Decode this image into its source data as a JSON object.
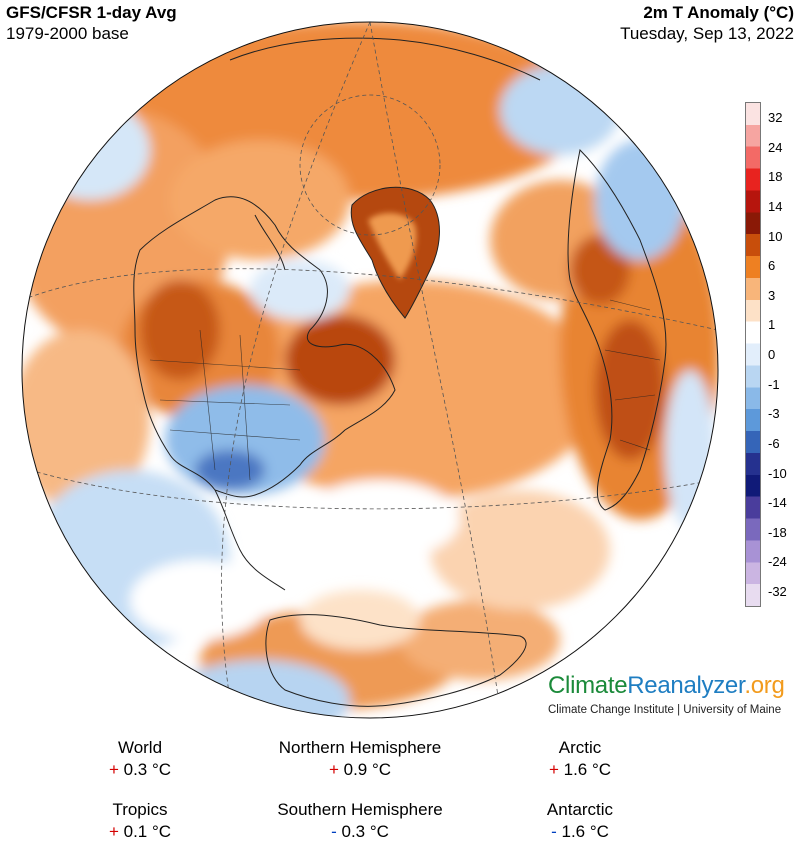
{
  "header": {
    "title": "GFS/CFSR 1-day Avg",
    "subtitle": "1979-2000 base",
    "variable": "2m T Anomaly (°C)",
    "date": "Tuesday, Sep 13, 2022"
  },
  "legend": {
    "labels": [
      "32",
      "24",
      "18",
      "14",
      "10",
      "6",
      "3",
      "1",
      "0",
      "-1",
      "-3",
      "-6",
      "-10",
      "-14",
      "-18",
      "-24",
      "-32"
    ],
    "colors": [
      "#fbe3e2",
      "#f6a5a1",
      "#f36a66",
      "#e8231f",
      "#b6150d",
      "#8a1906",
      "#c84e0b",
      "#ee8022",
      "#f8b57a",
      "#fde1c7",
      "#ffffff",
      "#e2eefb",
      "#b9d6f2",
      "#8ab9e8",
      "#5d99da",
      "#3565b8",
      "#25318f",
      "#101a78",
      "#4a3d9c",
      "#7a69bd",
      "#a892d5",
      "#cbb5e2",
      "#e8dcf0"
    ]
  },
  "brand": {
    "part1": "Climate",
    "part2": "Reanalyzer",
    "part3": ".org",
    "sub": "Climate Change Institute | University of Maine"
  },
  "stats": [
    {
      "label": "World",
      "sign": "+",
      "value": "0.3 °C"
    },
    {
      "label": "Northern Hemisphere",
      "sign": "+",
      "value": "0.9 °C"
    },
    {
      "label": "Arctic",
      "sign": "+",
      "value": "1.6 °C"
    },
    {
      "label": "Tropics",
      "sign": "+",
      "value": "0.1 °C"
    },
    {
      "label": "Southern Hemisphere",
      "sign": "-",
      "value": "0.3 °C"
    },
    {
      "label": "Antarctic",
      "sign": "-",
      "value": "1.6 °C"
    }
  ],
  "map": {
    "projection": "orthographic",
    "center": "North Atlantic",
    "anomaly_colors": {
      "strong_warm": "#a8370b",
      "warm": "#e8822f",
      "mild_warm": "#f7b27a",
      "slight_warm": "#fde0c5",
      "neutral": "#ffffff",
      "slight_cool": "#dcebfa",
      "cool": "#a9cdf0",
      "strong_cool": "#5d95d6",
      "cold": "#3050a8"
    }
  }
}
